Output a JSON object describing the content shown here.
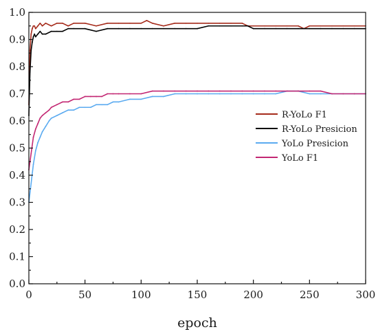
{
  "chart_data": {
    "type": "line",
    "title": "",
    "xlabel": "epoch",
    "ylabel": "",
    "xlim": [
      0,
      300
    ],
    "ylim": [
      0.0,
      1.0
    ],
    "xticks": [
      "0",
      "50",
      "100",
      "150",
      "200",
      "250",
      "300"
    ],
    "yticks": [
      "0.0",
      "0.1",
      "0.2",
      "0.3",
      "0.4",
      "0.5",
      "0.6",
      "0.7",
      "0.8",
      "0.9",
      "1.0"
    ],
    "grid": false,
    "legend_position": "right",
    "series": [
      {
        "name": "R-YoLo F1",
        "color": "#a52a1a",
        "x": [
          0,
          1,
          2,
          3,
          4,
          5,
          6,
          8,
          10,
          12,
          15,
          20,
          25,
          30,
          35,
          40,
          50,
          60,
          70,
          80,
          90,
          100,
          105,
          110,
          120,
          130,
          140,
          150,
          160,
          170,
          180,
          190,
          195,
          200,
          210,
          220,
          230,
          240,
          245,
          250,
          260,
          270,
          280,
          290,
          300
        ],
        "y": [
          0.66,
          0.86,
          0.92,
          0.94,
          0.95,
          0.95,
          0.94,
          0.95,
          0.96,
          0.95,
          0.96,
          0.95,
          0.96,
          0.96,
          0.95,
          0.96,
          0.96,
          0.95,
          0.96,
          0.96,
          0.96,
          0.96,
          0.97,
          0.96,
          0.95,
          0.96,
          0.96,
          0.96,
          0.96,
          0.96,
          0.96,
          0.96,
          0.95,
          0.95,
          0.95,
          0.95,
          0.95,
          0.95,
          0.94,
          0.95,
          0.95,
          0.95,
          0.95,
          0.95,
          0.95
        ]
      },
      {
        "name": "R-YoLo Presicion",
        "color": "#000000",
        "x": [
          0,
          1,
          2,
          3,
          4,
          5,
          6,
          8,
          10,
          12,
          15,
          20,
          25,
          30,
          35,
          40,
          50,
          60,
          70,
          80,
          90,
          100,
          110,
          120,
          130,
          140,
          150,
          160,
          170,
          180,
          190,
          195,
          200,
          210,
          220,
          230,
          240,
          250,
          260,
          270,
          280,
          290,
          300
        ],
        "y": [
          0.62,
          0.78,
          0.86,
          0.89,
          0.91,
          0.92,
          0.91,
          0.92,
          0.93,
          0.92,
          0.92,
          0.93,
          0.93,
          0.93,
          0.94,
          0.94,
          0.94,
          0.93,
          0.94,
          0.94,
          0.94,
          0.94,
          0.94,
          0.94,
          0.94,
          0.94,
          0.94,
          0.95,
          0.95,
          0.95,
          0.95,
          0.95,
          0.94,
          0.94,
          0.94,
          0.94,
          0.94,
          0.94,
          0.94,
          0.94,
          0.94,
          0.94,
          0.94
        ]
      },
      {
        "name": "YoLo Presicion",
        "color": "#5aaaf0",
        "x": [
          0,
          2,
          4,
          6,
          8,
          10,
          12,
          15,
          18,
          20,
          25,
          30,
          35,
          40,
          45,
          50,
          55,
          60,
          65,
          70,
          75,
          80,
          90,
          100,
          110,
          120,
          130,
          140,
          150,
          160,
          170,
          180,
          190,
          200,
          210,
          220,
          230,
          240,
          250,
          260,
          270,
          280,
          290,
          300
        ],
        "y": [
          0.3,
          0.37,
          0.44,
          0.49,
          0.52,
          0.54,
          0.56,
          0.58,
          0.6,
          0.61,
          0.62,
          0.63,
          0.64,
          0.64,
          0.65,
          0.65,
          0.65,
          0.66,
          0.66,
          0.66,
          0.67,
          0.67,
          0.68,
          0.68,
          0.69,
          0.69,
          0.7,
          0.7,
          0.7,
          0.7,
          0.7,
          0.7,
          0.7,
          0.7,
          0.7,
          0.7,
          0.71,
          0.71,
          0.7,
          0.7,
          0.7,
          0.7,
          0.7,
          0.7
        ]
      },
      {
        "name": "YoLo F1",
        "color": "#c22672",
        "x": [
          0,
          2,
          4,
          6,
          8,
          10,
          12,
          15,
          18,
          20,
          25,
          30,
          35,
          40,
          45,
          50,
          55,
          60,
          65,
          70,
          75,
          80,
          90,
          100,
          110,
          120,
          130,
          140,
          150,
          160,
          170,
          180,
          190,
          200,
          210,
          220,
          230,
          240,
          250,
          260,
          270,
          280,
          290,
          300
        ],
        "y": [
          0.42,
          0.48,
          0.54,
          0.57,
          0.59,
          0.61,
          0.62,
          0.63,
          0.64,
          0.65,
          0.66,
          0.67,
          0.67,
          0.68,
          0.68,
          0.69,
          0.69,
          0.69,
          0.69,
          0.7,
          0.7,
          0.7,
          0.7,
          0.7,
          0.71,
          0.71,
          0.71,
          0.71,
          0.71,
          0.71,
          0.71,
          0.71,
          0.71,
          0.71,
          0.71,
          0.71,
          0.71,
          0.71,
          0.71,
          0.71,
          0.7,
          0.7,
          0.7,
          0.7
        ]
      }
    ]
  }
}
